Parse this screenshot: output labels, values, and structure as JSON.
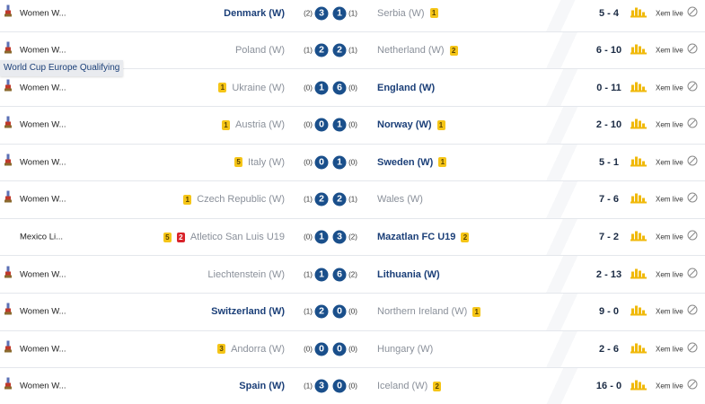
{
  "tooltip": "World Cup Europe Qualifying",
  "live_label": "Xem live",
  "rows": [
    {
      "league": "Women W...",
      "cup_icon": true,
      "home": {
        "name": "Denmark (W)",
        "cards": [],
        "ht": "(2)",
        "score": 3
      },
      "away": {
        "name": "Serbia (W)",
        "cards": [
          {
            "type": "yellow",
            "count": 1
          }
        ],
        "ht": "(1)",
        "score": 1
      },
      "corners": "5 - 4"
    },
    {
      "league": "Women W...",
      "cup_icon": true,
      "home": {
        "name": "Poland (W)",
        "cards": [],
        "ht": "(1)",
        "score": 2
      },
      "away": {
        "name": "Netherland (W)",
        "cards": [
          {
            "type": "yellow",
            "count": 2
          }
        ],
        "ht": "(1)",
        "score": 2
      },
      "corners": "6 - 10"
    },
    {
      "league": "Women W...",
      "cup_icon": true,
      "home": {
        "name": "Ukraine (W)",
        "cards": [
          {
            "type": "yellow",
            "count": 1
          }
        ],
        "ht": "(0)",
        "score": 1
      },
      "away": {
        "name": "England (W)",
        "cards": [],
        "ht": "(0)",
        "score": 6
      },
      "corners": "0 - 11"
    },
    {
      "league": "Women W...",
      "cup_icon": true,
      "home": {
        "name": "Austria (W)",
        "cards": [
          {
            "type": "yellow",
            "count": 1
          }
        ],
        "ht": "(0)",
        "score": 0
      },
      "away": {
        "name": "Norway (W)",
        "cards": [
          {
            "type": "yellow",
            "count": 1
          }
        ],
        "ht": "(0)",
        "score": 1
      },
      "corners": "2 - 10"
    },
    {
      "league": "Women W...",
      "cup_icon": true,
      "home": {
        "name": "Italy (W)",
        "cards": [
          {
            "type": "yellow",
            "count": 5
          }
        ],
        "ht": "(0)",
        "score": 0
      },
      "away": {
        "name": "Sweden (W)",
        "cards": [
          {
            "type": "yellow",
            "count": 1
          }
        ],
        "ht": "(0)",
        "score": 1
      },
      "corners": "5 - 1"
    },
    {
      "league": "Women W...",
      "cup_icon": true,
      "home": {
        "name": "Czech Republic (W)",
        "cards": [
          {
            "type": "yellow",
            "count": 1
          }
        ],
        "ht": "(1)",
        "score": 2
      },
      "away": {
        "name": "Wales (W)",
        "cards": [],
        "ht": "(1)",
        "score": 2
      },
      "corners": "7 - 6"
    },
    {
      "league": "Mexico Li...",
      "cup_icon": false,
      "home": {
        "name": "Atletico San Luis U19",
        "cards": [
          {
            "type": "yellow",
            "count": 5
          },
          {
            "type": "red",
            "count": 2
          }
        ],
        "ht": "(0)",
        "score": 1
      },
      "away": {
        "name": "Mazatlan FC U19",
        "cards": [
          {
            "type": "yellow",
            "count": 2
          }
        ],
        "ht": "(2)",
        "score": 3
      },
      "corners": "7 - 2"
    },
    {
      "league": "Women W...",
      "cup_icon": true,
      "home": {
        "name": "Liechtenstein (W)",
        "cards": [],
        "ht": "(1)",
        "score": 1
      },
      "away": {
        "name": "Lithuania (W)",
        "cards": [],
        "ht": "(2)",
        "score": 6
      },
      "corners": "2 - 13"
    },
    {
      "league": "Women W...",
      "cup_icon": true,
      "home": {
        "name": "Switzerland (W)",
        "cards": [],
        "ht": "(1)",
        "score": 2
      },
      "away": {
        "name": "Northern Ireland (W)",
        "cards": [
          {
            "type": "yellow",
            "count": 1
          }
        ],
        "ht": "(0)",
        "score": 0
      },
      "corners": "9 - 0"
    },
    {
      "league": "Women W...",
      "cup_icon": true,
      "home": {
        "name": "Andorra (W)",
        "cards": [
          {
            "type": "yellow",
            "count": 3
          }
        ],
        "ht": "(0)",
        "score": 0
      },
      "away": {
        "name": "Hungary (W)",
        "cards": [],
        "ht": "(0)",
        "score": 0
      },
      "corners": "2 - 6"
    },
    {
      "league": "Women W...",
      "cup_icon": true,
      "home": {
        "name": "Spain (W)",
        "cards": [],
        "ht": "(1)",
        "score": 3
      },
      "away": {
        "name": "Iceland (W)",
        "cards": [
          {
            "type": "yellow",
            "count": 2
          }
        ],
        "ht": "(0)",
        "score": 0
      },
      "corners": "16 - 0"
    }
  ]
}
